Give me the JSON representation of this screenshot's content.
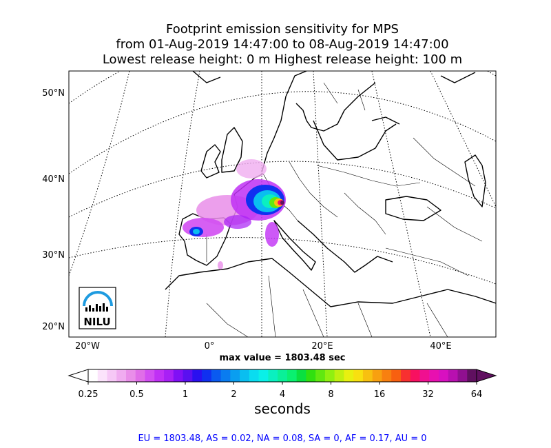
{
  "title": {
    "line1": "Footprint emission sensitivity for MPS",
    "line2": "from 01-Aug-2019 14:47:00 to 08-Aug-2019 14:47:00",
    "line3": "Lowest release height: 0 m      Highest release height: 100 m"
  },
  "chart_data": {
    "type": "heatmap",
    "title": "Footprint emission sensitivity for MPS",
    "lat_ticks": [
      "20°N",
      "30°N",
      "40°N",
      "50°N"
    ],
    "lon_ticks": [
      "20°W",
      "0°",
      "20°E",
      "40°E"
    ],
    "max_label": "max value = 1803.48 sec",
    "max_value": 1803.48,
    "colorbar": {
      "scale": "log",
      "tick_labels": [
        "0.25",
        "0.5",
        "1",
        "2",
        "4",
        "8",
        "16",
        "32",
        "64"
      ],
      "units": "seconds",
      "colors": [
        "#ffffff",
        "#fbe3fb",
        "#f6c8f6",
        "#f0acf0",
        "#e98ee9",
        "#e06ee8",
        "#d24ef2",
        "#c030f5",
        "#a820f5",
        "#8010f5",
        "#5a10f0",
        "#2a10f0",
        "#1030f0",
        "#0a5af0",
        "#0a7cf0",
        "#0a9ef0",
        "#0abef0",
        "#0adcf0",
        "#0af0e8",
        "#0af0c0",
        "#0af098",
        "#0af070",
        "#0ae040",
        "#30e010",
        "#60e810",
        "#90f010",
        "#c0f010",
        "#e8f010",
        "#f8e010",
        "#f8c010",
        "#f8a010",
        "#f88010",
        "#f86010",
        "#f83030",
        "#f81060",
        "#f01090",
        "#e810b0",
        "#d810c0",
        "#b810b0",
        "#901090",
        "#601060"
      ]
    },
    "logo_text": "NILU"
  },
  "footer": {
    "regions": "EU = 1803.48,  AS = 0.02,  NA = 0.08,  SA = 0,  AF = 0.17,  AU = 0"
  }
}
